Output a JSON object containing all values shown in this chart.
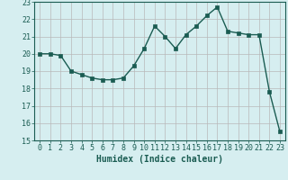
{
  "x": [
    0,
    1,
    2,
    3,
    4,
    5,
    6,
    7,
    8,
    9,
    10,
    11,
    12,
    13,
    14,
    15,
    16,
    17,
    18,
    19,
    20,
    21,
    22,
    23
  ],
  "y": [
    20.0,
    20.0,
    19.9,
    19.0,
    18.8,
    18.6,
    18.5,
    18.5,
    18.6,
    19.3,
    20.3,
    21.6,
    21.0,
    20.3,
    21.1,
    21.6,
    22.2,
    22.7,
    21.3,
    21.2,
    21.1,
    21.1,
    17.8,
    15.5
  ],
  "line_color": "#1a5c52",
  "marker": "s",
  "markersize": 2.5,
  "linewidth": 1.0,
  "bg_color": "#d6eef0",
  "grid_color": "#b8b8b8",
  "xlabel": "Humidex (Indice chaleur)",
  "xlabel_fontsize": 7,
  "tick_fontsize": 6,
  "ylim": [
    15,
    23
  ],
  "xlim": [
    -0.5,
    23.5
  ],
  "yticks": [
    15,
    16,
    17,
    18,
    19,
    20,
    21,
    22,
    23
  ],
  "xticks": [
    0,
    1,
    2,
    3,
    4,
    5,
    6,
    7,
    8,
    9,
    10,
    11,
    12,
    13,
    14,
    15,
    16,
    17,
    18,
    19,
    20,
    21,
    22,
    23
  ]
}
